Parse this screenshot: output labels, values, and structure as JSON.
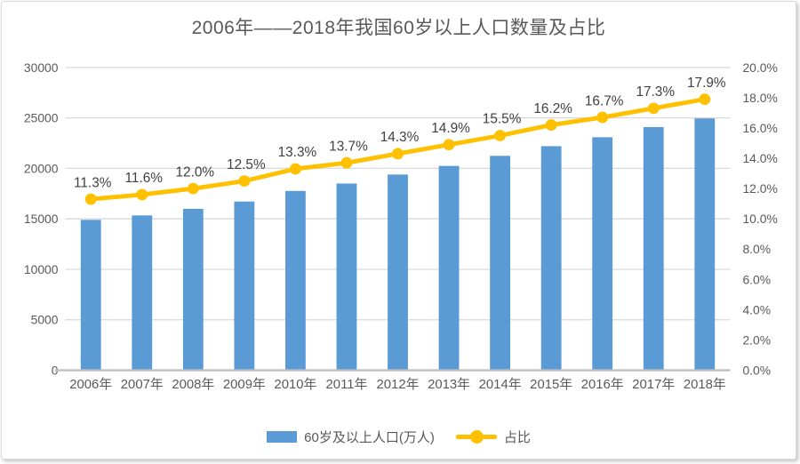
{
  "chart_data": {
    "type": "combo",
    "title": "2006年——2018年我国60岁以上人口数量及占比",
    "categories": [
      "2006年",
      "2007年",
      "2008年",
      "2009年",
      "2010年",
      "2011年",
      "2012年",
      "2013年",
      "2014年",
      "2015年",
      "2016年",
      "2017年",
      "2018年"
    ],
    "series": [
      {
        "name": "60岁及以上人口(万人)",
        "type": "bar",
        "axis": "left",
        "color": "#5B9BD5",
        "values": [
          14901,
          15340,
          15989,
          16714,
          17765,
          18499,
          19390,
          20243,
          21242,
          22200,
          23086,
          24090,
          24949
        ]
      },
      {
        "name": "占比",
        "type": "line",
        "axis": "right",
        "color": "#FFC000",
        "values": [
          11.3,
          11.6,
          12.0,
          12.5,
          13.3,
          13.7,
          14.3,
          14.9,
          15.5,
          16.2,
          16.7,
          17.3,
          17.9
        ],
        "point_labels": [
          "11.3%",
          "11.6%",
          "12.0%",
          "12.5%",
          "13.3%",
          "13.7%",
          "14.3%",
          "14.9%",
          "15.5%",
          "16.2%",
          "16.7%",
          "17.3%",
          "17.9%"
        ]
      }
    ],
    "left_axis": {
      "min": 0,
      "max": 30000,
      "step": 5000,
      "ticks": [
        "30000",
        "25000",
        "20000",
        "15000",
        "10000",
        "5000",
        "0"
      ]
    },
    "right_axis": {
      "min": 0,
      "max": 20,
      "step": 2,
      "ticks": [
        "20.0%",
        "18.0%",
        "16.0%",
        "14.0%",
        "12.0%",
        "10.0%",
        "8.0%",
        "6.0%",
        "4.0%",
        "2.0%",
        "0.0%"
      ]
    },
    "grid": true,
    "legend_position": "bottom",
    "colors": {
      "bar": "#5B9BD5",
      "line": "#FFC000",
      "grid": "#D9D9D9",
      "axis_line": "#BFBFBF",
      "axis_text": "#595959",
      "label_text": "#404040",
      "title_text": "#595959",
      "background": "#FFFFFF",
      "border": "#D9D9D9"
    }
  }
}
